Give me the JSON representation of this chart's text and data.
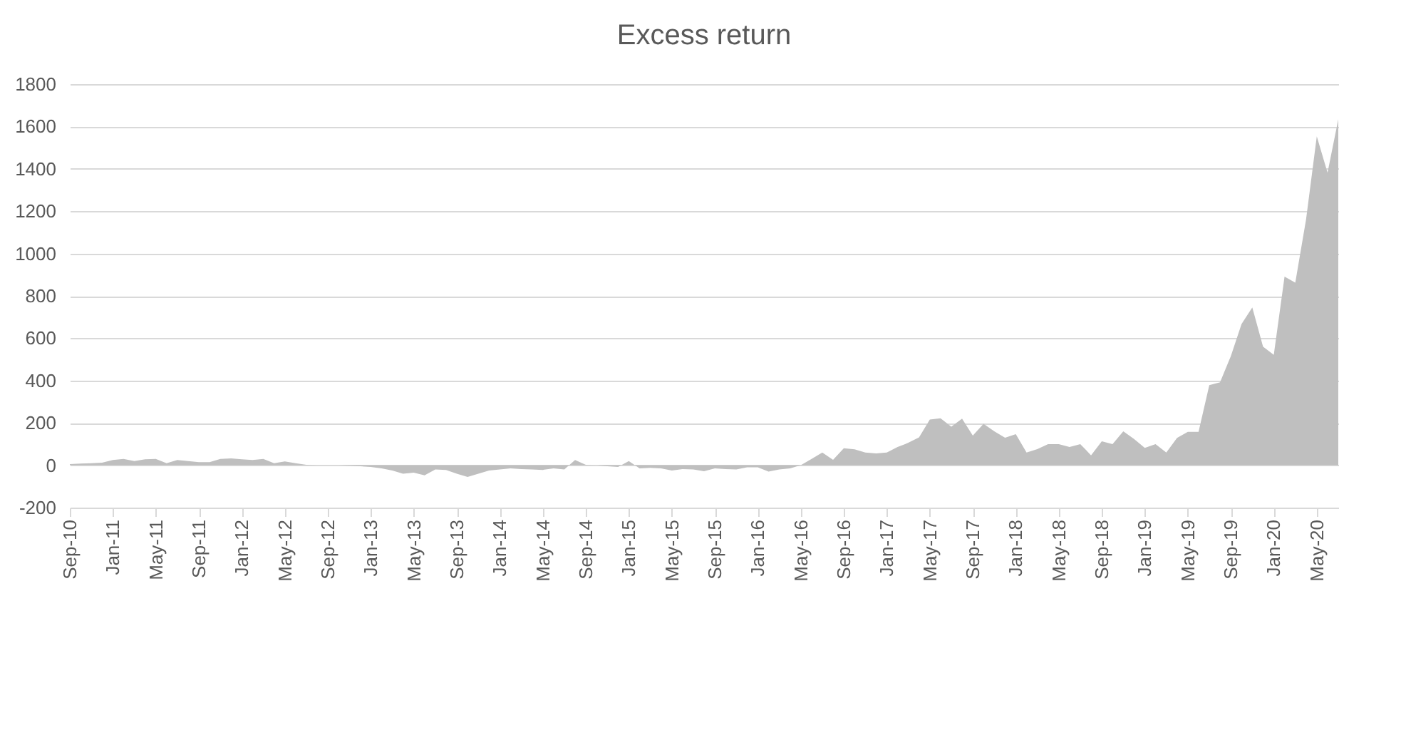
{
  "chart_data": {
    "type": "area",
    "title": "Excess return",
    "categories": [
      "Sep-10",
      null,
      null,
      null,
      "Jan-11",
      null,
      null,
      null,
      "May-11",
      null,
      null,
      null,
      "Sep-11",
      null,
      null,
      null,
      "Jan-12",
      null,
      null,
      null,
      "May-12",
      null,
      null,
      null,
      "Sep-12",
      null,
      null,
      null,
      "Jan-13",
      null,
      null,
      null,
      "May-13",
      null,
      null,
      null,
      "Sep-13",
      null,
      null,
      null,
      "Jan-14",
      null,
      null,
      null,
      "May-14",
      null,
      null,
      null,
      "Sep-14",
      null,
      null,
      null,
      "Jan-15",
      null,
      null,
      null,
      "May-15",
      null,
      null,
      null,
      "Sep-15",
      null,
      null,
      null,
      "Jan-16",
      null,
      null,
      null,
      "May-16",
      null,
      null,
      null,
      "Sep-16",
      null,
      null,
      null,
      "Jan-17",
      null,
      null,
      null,
      "May-17",
      null,
      null,
      null,
      "Sep-17",
      null,
      null,
      null,
      "Jan-18",
      null,
      null,
      null,
      "May-18",
      null,
      null,
      null,
      "Sep-18",
      null,
      null,
      null,
      "Jan-19",
      null,
      null,
      null,
      "May-19",
      null,
      null,
      null,
      "Sep-19",
      null,
      null,
      null,
      "Jan-20",
      null,
      null,
      null,
      "May-20",
      null,
      null
    ],
    "series": [
      {
        "color": "#bfbfbf",
        "values": [
          5,
          8,
          10,
          12,
          25,
          30,
          20,
          28,
          30,
          10,
          25,
          20,
          15,
          15,
          30,
          32,
          28,
          25,
          30,
          10,
          18,
          10,
          2,
          0,
          0,
          0,
          -2,
          -5,
          -8,
          -15,
          -25,
          -40,
          -35,
          -48,
          -20,
          -22,
          -40,
          -55,
          -40,
          -25,
          -20,
          -15,
          -18,
          -20,
          -22,
          -15,
          -20,
          25,
          2,
          0,
          -5,
          -8,
          20,
          -15,
          -12,
          -15,
          -25,
          -18,
          -20,
          -28,
          -15,
          -18,
          -20,
          -10,
          -10,
          -30,
          -20,
          -15,
          0,
          30,
          60,
          26,
          80,
          75,
          60,
          56,
          60,
          86,
          106,
          132,
          216,
          222,
          182,
          220,
          140,
          196,
          160,
          130,
          147,
          60,
          76,
          100,
          100,
          86,
          100,
          47,
          113,
          100,
          160,
          124,
          82,
          100,
          60,
          129,
          158,
          158,
          378,
          392,
          515,
          667,
          745,
          560,
          521,
          891,
          862,
          1160,
          1553,
          1382,
          1634
        ]
      }
    ],
    "ylim": [
      -200,
      1800
    ],
    "yticks": [
      -200,
      0,
      200,
      400,
      600,
      800,
      1000,
      1200,
      1400,
      1600,
      1800
    ],
    "grid": "y"
  }
}
